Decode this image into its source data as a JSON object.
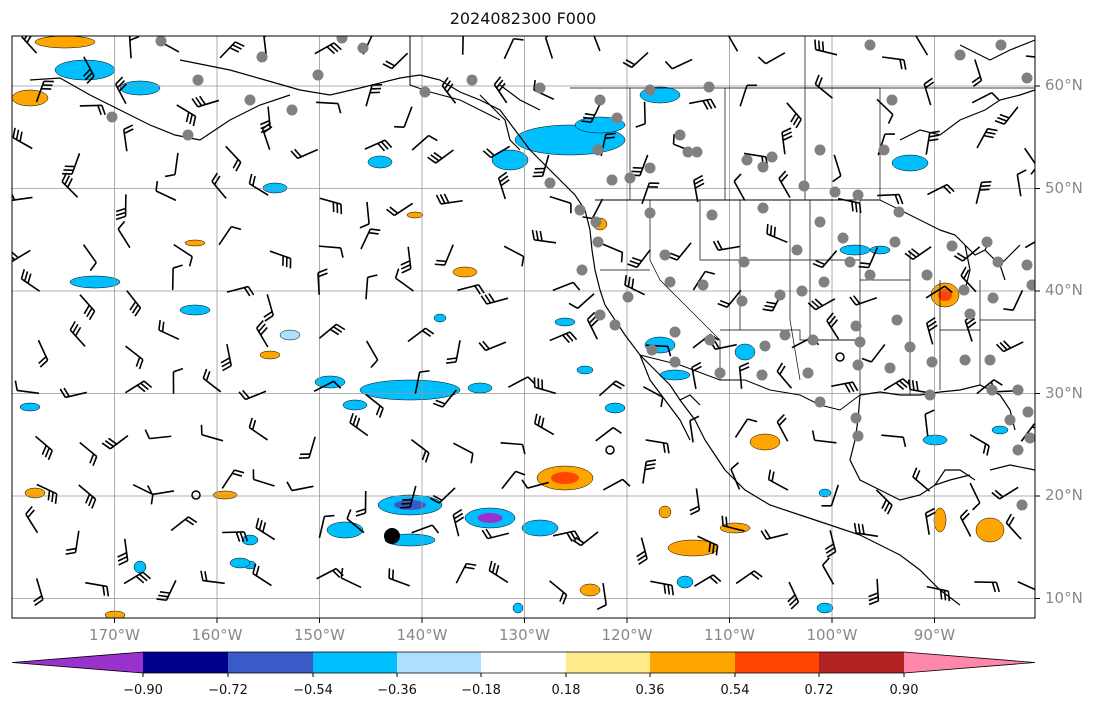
{
  "title": "2024082300 F000",
  "lat_labels": [
    "60°N",
    "50°N",
    "40°N",
    "30°N",
    "20°N",
    "10°N"
  ],
  "lon_labels": [
    "170°W",
    "160°W",
    "150°W",
    "140°W",
    "130°W",
    "120°W",
    "110°W",
    "100°W",
    "90°W"
  ],
  "colorbar": {
    "tick_labels": [
      "−0.90",
      "−0.72",
      "−0.54",
      "−0.36",
      "−0.18",
      "0.18",
      "0.36",
      "0.54",
      "0.72",
      "0.90"
    ],
    "colors": [
      "#9932CC",
      "#00008B",
      "#3A5BC7",
      "#00BFFF",
      "#ADDFFF",
      "#FFFFFF",
      "#FFEA8A",
      "#FFA500",
      "#FF4500",
      "#B22222",
      "#FF88AA"
    ]
  },
  "map": {
    "lon_range": [
      -180,
      -80
    ],
    "lat_range": [
      8,
      65
    ],
    "grid": true,
    "features": [
      "coastlines",
      "country borders",
      "state borders",
      "wind barbs",
      "shaded contours",
      "station dots"
    ]
  }
}
